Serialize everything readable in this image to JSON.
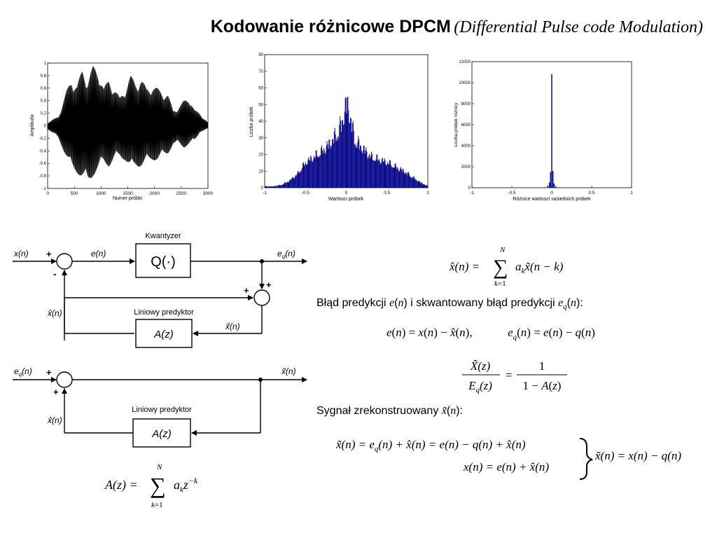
{
  "header": {
    "title_main": "Kodowanie różnicowe DPCM",
    "title_sub": "(Differential Pulse code Modulation)"
  },
  "chart_data": [
    {
      "type": "line",
      "xlabel": "Numer próbki",
      "ylabel": "Amplituda",
      "xlim": [
        0,
        3000
      ],
      "ylim": [
        -1,
        1
      ],
      "x_ticks": [
        "0",
        "500",
        "1000",
        "1500",
        "2000",
        "2500",
        "3000"
      ],
      "y_ticks": [
        "-1",
        "-0.8",
        "-0.6",
        "-0.4",
        "-0.2",
        "0",
        "0.2",
        "0.4",
        "0.6",
        "0.8",
        "1"
      ],
      "envelope": {
        "x": [
          0,
          200,
          350,
          450,
          550,
          650,
          750,
          850,
          950,
          1050,
          1150,
          1250,
          1350,
          1450,
          1550,
          1650,
          1750,
          1850,
          1950,
          2050,
          2150,
          2250,
          2350,
          2450,
          2550,
          2650,
          2750,
          2850,
          3000
        ],
        "upper": [
          0.05,
          0.15,
          0.55,
          0.75,
          0.65,
          0.9,
          0.75,
          0.95,
          0.9,
          0.6,
          0.75,
          0.6,
          0.45,
          0.6,
          0.8,
          0.7,
          0.75,
          0.6,
          0.65,
          0.6,
          0.55,
          0.5,
          0.25,
          0.3,
          0.4,
          0.45,
          0.25,
          0.2,
          0.05
        ],
        "lower": [
          -0.05,
          -0.2,
          -0.5,
          -0.7,
          -0.75,
          -0.85,
          -0.95,
          -0.8,
          -0.7,
          -0.6,
          -0.65,
          -0.55,
          -0.5,
          -0.55,
          -0.7,
          -0.65,
          -0.65,
          -0.6,
          -0.55,
          -0.55,
          -0.5,
          -0.45,
          -0.3,
          -0.3,
          -0.35,
          -0.3,
          -0.25,
          -0.1,
          -0.05
        ]
      }
    },
    {
      "type": "bar",
      "xlabel": "Wartosci próbek",
      "ylabel": "Liczba próbek",
      "xlim": [
        -1,
        1
      ],
      "ylim": [
        0,
        80
      ],
      "x_ticks": [
        "-1",
        "-0.5",
        "0",
        "0.5",
        "1"
      ],
      "y_ticks": [
        "0",
        "10",
        "20",
        "30",
        "40",
        "50",
        "60",
        "70",
        "80"
      ],
      "x": [
        -1,
        -0.9,
        -0.8,
        -0.7,
        -0.6,
        -0.5,
        -0.4,
        -0.3,
        -0.2,
        -0.1,
        -0.05,
        0,
        0.05,
        0.1,
        0.2,
        0.3,
        0.4,
        0.5,
        0.6,
        0.7,
        0.8,
        0.9,
        1
      ],
      "values": [
        1,
        1,
        2,
        5,
        10,
        18,
        22,
        26,
        32,
        40,
        48,
        62,
        50,
        34,
        28,
        22,
        20,
        18,
        15,
        12,
        8,
        4,
        1
      ]
    },
    {
      "type": "bar",
      "xlabel": "Różnice wartosci sasiednich próbek",
      "ylabel": "Liczba próbek różnicy",
      "xlim": [
        -1,
        1
      ],
      "ylim": [
        0,
        12000
      ],
      "x_ticks": [
        "-1",
        "-0.5",
        "0",
        "0.5",
        "1"
      ],
      "y_ticks": [
        "0",
        "2000",
        "4000",
        "6000",
        "8000",
        "10000",
        "12000"
      ],
      "x": [
        -0.08,
        -0.05,
        -0.03,
        -0.015,
        0,
        0.015,
        0.03,
        0.05,
        0.08
      ],
      "values": [
        50,
        200,
        500,
        1500,
        10800,
        1600,
        400,
        150,
        40
      ]
    }
  ],
  "diagram1": {
    "quantizer_title": "Kwantyzer",
    "quantizer_label": "Q(·)",
    "input": "x(n)",
    "error": "e(n)",
    "output": "e",
    "output_sub": "q",
    "output_tail": "(n)",
    "pred_out": "x̂(n)",
    "pred_in": "x̃(n)",
    "predictor_title": "Liniowy predyktor",
    "predictor_label": "A(z)",
    "plus": "+",
    "minus": "-"
  },
  "diagram2": {
    "input": "e",
    "input_sub": "q",
    "input_tail": "(n)",
    "output": "x̃(n)",
    "pred_out": "x̂(n)",
    "predictor_title": "Liniowy predyktor",
    "predictor_label": "A(z)",
    "plus": "+"
  },
  "text": {
    "error_heading": "Błąd predykcji",
    "error_mid": "i skwantowany błąd predykcji",
    "recon_heading": "Sygnał zrekonstruowany"
  }
}
